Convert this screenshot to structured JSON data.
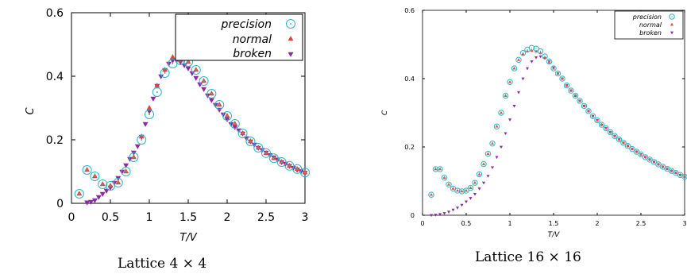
{
  "colors": {
    "precision": "#2ab6c4",
    "normal": "#e8413a",
    "broken": "#8a2aa0"
  },
  "chart_data": [
    {
      "type": "scatter",
      "caption": "Lattice 4 × 4",
      "xlabel": "T/V",
      "ylabel": "C",
      "xlim": [
        0,
        3
      ],
      "ylim": [
        0,
        0.6
      ],
      "xticks": [
        "0",
        "0.5",
        "1",
        "1.5",
        "2",
        "2.5",
        "3"
      ],
      "yticks": [
        "0",
        "0.2",
        "0.4",
        "0.6"
      ],
      "legend_position": "top-right",
      "grid": false,
      "series": [
        {
          "name": "precision",
          "marker": "circle-dot",
          "x": [
            0.1,
            0.2,
            0.3,
            0.4,
            0.5,
            0.6,
            0.7,
            0.8,
            0.9,
            1.0,
            1.1,
            1.2,
            1.3,
            1.4,
            1.5,
            1.6,
            1.7,
            1.8,
            1.9,
            2.0,
            2.1,
            2.2,
            2.3,
            2.4,
            2.5,
            2.6,
            2.7,
            2.8,
            2.9,
            3.0
          ],
          "y": [
            0.03,
            0.105,
            0.085,
            0.06,
            0.055,
            0.065,
            0.1,
            0.145,
            0.2,
            0.28,
            0.35,
            0.41,
            0.44,
            0.45,
            0.445,
            0.42,
            0.385,
            0.345,
            0.31,
            0.275,
            0.25,
            0.22,
            0.195,
            0.175,
            0.158,
            0.142,
            0.13,
            0.118,
            0.108,
            0.097
          ]
        },
        {
          "name": "normal",
          "marker": "triangle-up",
          "x": [
            0.1,
            0.2,
            0.3,
            0.4,
            0.5,
            0.6,
            0.7,
            0.8,
            0.9,
            1.0,
            1.1,
            1.2,
            1.3,
            1.4,
            1.5,
            1.6,
            1.7,
            1.8,
            1.9,
            2.0,
            2.1,
            2.2,
            2.3,
            2.4,
            2.5,
            2.6,
            2.7,
            2.8,
            2.9,
            3.0
          ],
          "y": [
            0.03,
            0.105,
            0.085,
            0.06,
            0.055,
            0.065,
            0.1,
            0.145,
            0.21,
            0.3,
            0.37,
            0.42,
            0.46,
            0.45,
            0.445,
            0.42,
            0.385,
            0.345,
            0.31,
            0.275,
            0.25,
            0.22,
            0.195,
            0.175,
            0.158,
            0.142,
            0.13,
            0.118,
            0.108,
            0.097
          ]
        },
        {
          "name": "broken",
          "marker": "triangle-down",
          "x": [
            0.2,
            0.25,
            0.3,
            0.35,
            0.4,
            0.45,
            0.5,
            0.55,
            0.6,
            0.65,
            0.7,
            0.75,
            0.8,
            0.85,
            0.9,
            0.95,
            1.0,
            1.05,
            1.1,
            1.15,
            1.2,
            1.25,
            1.3,
            1.35,
            1.4,
            1.45,
            1.5,
            1.55,
            1.6,
            1.65,
            1.7,
            1.75,
            1.8,
            1.85,
            1.9,
            1.95,
            2.0,
            2.05,
            2.1,
            2.15,
            2.2,
            2.25,
            2.3,
            2.35,
            2.4,
            2.45,
            2.5,
            2.55,
            2.6,
            2.65,
            2.7,
            2.75,
            2.8,
            2.85,
            2.9,
            2.95,
            3.0
          ],
          "y": [
            0.003,
            0.005,
            0.01,
            0.02,
            0.03,
            0.04,
            0.05,
            0.065,
            0.08,
            0.1,
            0.12,
            0.14,
            0.16,
            0.18,
            0.21,
            0.25,
            0.29,
            0.33,
            0.37,
            0.4,
            0.42,
            0.44,
            0.45,
            0.45,
            0.445,
            0.435,
            0.425,
            0.41,
            0.395,
            0.375,
            0.36,
            0.34,
            0.325,
            0.31,
            0.295,
            0.28,
            0.265,
            0.25,
            0.24,
            0.23,
            0.22,
            0.205,
            0.195,
            0.185,
            0.175,
            0.168,
            0.16,
            0.152,
            0.145,
            0.138,
            0.13,
            0.125,
            0.118,
            0.112,
            0.106,
            0.101,
            0.096
          ]
        }
      ]
    },
    {
      "type": "scatter",
      "caption": "Lattice 16 × 16",
      "xlabel": "T/V",
      "ylabel": "C",
      "xlim": [
        0,
        3
      ],
      "ylim": [
        0,
        0.6
      ],
      "xticks": [
        "0",
        "0.5",
        "1",
        "1.5",
        "2",
        "2.5",
        "3"
      ],
      "yticks": [
        "0",
        "0.2",
        "0.4",
        "0.6"
      ],
      "legend_position": "top-right",
      "grid": false,
      "series": [
        {
          "name": "precision",
          "marker": "circle-dot",
          "x": [
            0.1,
            0.15,
            0.2,
            0.25,
            0.3,
            0.35,
            0.4,
            0.45,
            0.5,
            0.55,
            0.6,
            0.65,
            0.7,
            0.75,
            0.8,
            0.85,
            0.9,
            0.95,
            1.0,
            1.05,
            1.1,
            1.15,
            1.2,
            1.25,
            1.3,
            1.35,
            1.4,
            1.45,
            1.5,
            1.55,
            1.6,
            1.65,
            1.7,
            1.75,
            1.8,
            1.85,
            1.9,
            1.95,
            2.0,
            2.05,
            2.1,
            2.15,
            2.2,
            2.25,
            2.3,
            2.35,
            2.4,
            2.45,
            2.5,
            2.55,
            2.6,
            2.65,
            2.7,
            2.75,
            2.8,
            2.85,
            2.9,
            2.95,
            3.0
          ],
          "y": [
            0.06,
            0.135,
            0.135,
            0.11,
            0.09,
            0.078,
            0.072,
            0.07,
            0.072,
            0.08,
            0.095,
            0.12,
            0.15,
            0.18,
            0.21,
            0.26,
            0.3,
            0.35,
            0.39,
            0.43,
            0.455,
            0.475,
            0.485,
            0.49,
            0.488,
            0.48,
            0.465,
            0.45,
            0.43,
            0.415,
            0.4,
            0.38,
            0.365,
            0.35,
            0.335,
            0.32,
            0.305,
            0.29,
            0.278,
            0.265,
            0.255,
            0.243,
            0.232,
            0.222,
            0.212,
            0.203,
            0.194,
            0.186,
            0.178,
            0.17,
            0.163,
            0.156,
            0.149,
            0.142,
            0.136,
            0.13,
            0.124,
            0.118,
            0.113
          ]
        },
        {
          "name": "normal",
          "marker": "triangle-up",
          "x": [
            0.1,
            0.15,
            0.2,
            0.25,
            0.3,
            0.35,
            0.4,
            0.45,
            0.5,
            0.55,
            0.6,
            0.65,
            0.7,
            0.75,
            0.8,
            0.85,
            0.9,
            0.95,
            1.0,
            1.05,
            1.1,
            1.15,
            1.2,
            1.25,
            1.3,
            1.35,
            1.4,
            1.45,
            1.5,
            1.55,
            1.6,
            1.65,
            1.7,
            1.75,
            1.8,
            1.85,
            1.9,
            1.95,
            2.0,
            2.05,
            2.1,
            2.15,
            2.2,
            2.25,
            2.3,
            2.35,
            2.4,
            2.45,
            2.5,
            2.55,
            2.6,
            2.65,
            2.7,
            2.75,
            2.8,
            2.85,
            2.9,
            2.95,
            3.0
          ],
          "y": [
            0.06,
            0.135,
            0.135,
            0.11,
            0.09,
            0.078,
            0.072,
            0.07,
            0.072,
            0.08,
            0.095,
            0.12,
            0.15,
            0.18,
            0.21,
            0.26,
            0.3,
            0.35,
            0.39,
            0.43,
            0.455,
            0.472,
            0.48,
            0.482,
            0.48,
            0.475,
            0.462,
            0.448,
            0.43,
            0.415,
            0.4,
            0.38,
            0.365,
            0.35,
            0.335,
            0.32,
            0.305,
            0.29,
            0.278,
            0.265,
            0.255,
            0.243,
            0.232,
            0.222,
            0.212,
            0.203,
            0.194,
            0.186,
            0.178,
            0.17,
            0.163,
            0.156,
            0.149,
            0.142,
            0.136,
            0.13,
            0.124,
            0.118,
            0.113
          ]
        },
        {
          "name": "broken",
          "marker": "triangle-down",
          "x": [
            0.1,
            0.15,
            0.2,
            0.25,
            0.3,
            0.35,
            0.4,
            0.45,
            0.5,
            0.55,
            0.6,
            0.65,
            0.7,
            0.75,
            0.8,
            0.85,
            0.9,
            0.95,
            1.0,
            1.05,
            1.1,
            1.15,
            1.2,
            1.25,
            1.3,
            1.35,
            1.4,
            1.45,
            1.5,
            1.55,
            1.6,
            1.65,
            1.7,
            1.75,
            1.8,
            1.85,
            1.9,
            1.95,
            2.0,
            2.05,
            2.1,
            2.15,
            2.2,
            2.25,
            2.3,
            2.35,
            2.4,
            2.45,
            2.5,
            2.55,
            2.6,
            2.65,
            2.7,
            2.75,
            2.8,
            2.85,
            2.9,
            2.95,
            3.0
          ],
          "y": [
            0.0,
            0.001,
            0.003,
            0.006,
            0.01,
            0.016,
            0.022,
            0.03,
            0.04,
            0.05,
            0.062,
            0.078,
            0.095,
            0.115,
            0.14,
            0.17,
            0.2,
            0.24,
            0.28,
            0.32,
            0.36,
            0.4,
            0.43,
            0.45,
            0.462,
            0.465,
            0.46,
            0.45,
            0.432,
            0.415,
            0.4,
            0.38,
            0.365,
            0.35,
            0.335,
            0.32,
            0.305,
            0.29,
            0.278,
            0.265,
            0.255,
            0.243,
            0.232,
            0.222,
            0.212,
            0.203,
            0.194,
            0.186,
            0.178,
            0.17,
            0.163,
            0.156,
            0.149,
            0.142,
            0.136,
            0.13,
            0.124,
            0.118,
            0.113
          ]
        }
      ]
    }
  ]
}
